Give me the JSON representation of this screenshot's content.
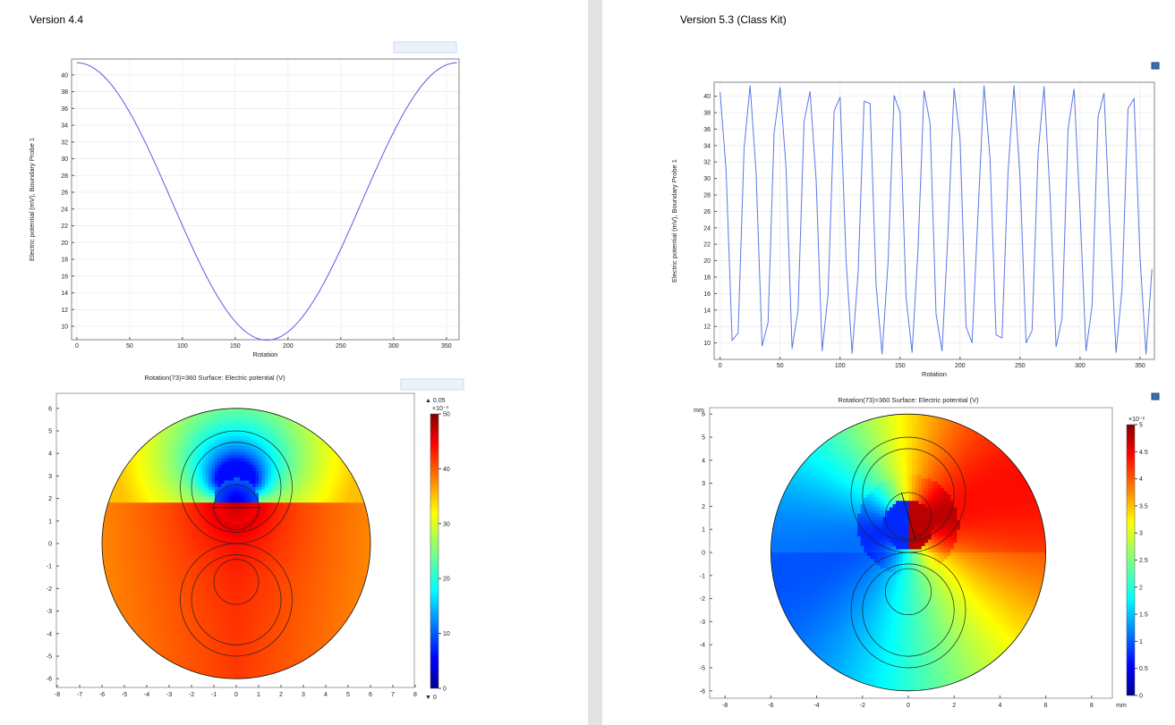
{
  "left": {
    "title": "Version 4.4",
    "line_plot": {
      "type": "line",
      "xlabel": "Rotation",
      "ylabel": "Electric potential (mV), Boundary Probe 1",
      "x_ticks": [
        "0",
        "50",
        "100",
        "150",
        "200",
        "250",
        "300",
        "350"
      ],
      "y_ticks": [
        "10",
        "12",
        "14",
        "16",
        "18",
        "20",
        "22",
        "24",
        "26",
        "28",
        "30",
        "32",
        "34",
        "36",
        "38",
        "40"
      ],
      "xlim": [
        -5,
        362
      ],
      "ylim": [
        8.4,
        41.9
      ],
      "line_color": "#5a5ae6",
      "model": {
        "mean": 24.9,
        "amplitude": 16.55,
        "period_deg": 360,
        "phase_deg": 0
      }
    },
    "surface_plot": {
      "title": "Rotation(73)=360   Surface: Electric potential (V)",
      "x_ticks": [
        "-8",
        "-7",
        "-6",
        "-5",
        "-4",
        "-3",
        "-2",
        "-1",
        "0",
        "1",
        "2",
        "3",
        "4",
        "5",
        "6",
        "7",
        "8"
      ],
      "y_ticks": [
        "6",
        "5",
        "4",
        "3",
        "2",
        "1",
        "0",
        "-1",
        "-2",
        "-3",
        "-4",
        "-5",
        "-6"
      ],
      "colorbar": {
        "max_label": "▲ 0.05",
        "min_label": "▼ 0",
        "exponent_label": "×10⁻³",
        "ticks": [
          "50",
          "40",
          "30",
          "20",
          "10",
          "0"
        ]
      }
    }
  },
  "right": {
    "title": "Version 5.3 (Class Kit)",
    "line_plot": {
      "type": "line",
      "xlabel": "Rotation",
      "ylabel": "Electric potential (mV), Boundary Probe 1",
      "x_ticks": [
        "0",
        "50",
        "100",
        "150",
        "200",
        "250",
        "300",
        "350"
      ],
      "y_ticks": [
        "10",
        "12",
        "14",
        "16",
        "18",
        "20",
        "22",
        "24",
        "26",
        "28",
        "30",
        "32",
        "34",
        "36",
        "38",
        "40"
      ],
      "xlim": [
        -5,
        362
      ],
      "ylim": [
        8.0,
        41.7
      ],
      "line_color": "#5a78e6",
      "x": [
        0,
        5,
        10,
        15,
        20,
        25,
        30,
        35,
        40,
        45,
        50,
        55,
        60,
        65,
        70,
        75,
        80,
        85,
        90,
        95,
        100,
        105,
        110,
        115,
        120,
        125,
        130,
        135,
        140,
        145,
        150,
        155,
        160,
        165,
        170,
        175,
        180,
        185,
        190,
        195,
        200,
        205,
        210,
        215,
        220,
        225,
        230,
        235,
        240,
        245,
        250,
        255,
        260,
        265,
        270,
        275,
        280,
        285,
        290,
        295,
        300,
        305,
        310,
        315,
        320,
        325,
        330,
        335,
        340,
        345,
        350,
        355,
        360
      ],
      "values": [
        40.5,
        30.9,
        10.3,
        11.2,
        33.7,
        41.3,
        30.7,
        9.6,
        12.5,
        35.5,
        41.1,
        31.3,
        9.3,
        14.0,
        36.9,
        40.6,
        29.8,
        9.0,
        16.0,
        38.2,
        39.9,
        20.0,
        8.7,
        18.5,
        39.4,
        39.1,
        17.0,
        8.6,
        19.9,
        40.1,
        38.0,
        15.5,
        8.8,
        21.5,
        40.7,
        36.7,
        13.5,
        9.0,
        23.5,
        41.0,
        34.8,
        12.0,
        10.0,
        25.7,
        41.3,
        32.5,
        11.0,
        10.6,
        30.7,
        41.3,
        30.0,
        10.0,
        11.5,
        33.0,
        41.2,
        28.0,
        9.5,
        13.0,
        36.0,
        40.9,
        26.0,
        9.0,
        14.5,
        37.5,
        40.4,
        24.0,
        8.8,
        16.5,
        38.5,
        39.7,
        20.5,
        8.6,
        19.0
      ]
    },
    "surface_plot": {
      "title": "Rotation(73)=360   Surface: Electric potential (V)",
      "unit_label": "mm",
      "x_ticks": [
        "-8",
        "-6",
        "-4",
        "-2",
        "0",
        "2",
        "4",
        "6",
        "8"
      ],
      "y_ticks": [
        "6",
        "5",
        "4",
        "3",
        "2",
        "1",
        "0",
        "-1",
        "-2",
        "-3",
        "-4",
        "-5",
        "-6"
      ],
      "colorbar": {
        "exponent_label": "×10⁻²",
        "ticks": [
          "5",
          "4.5",
          "4",
          "3.5",
          "3",
          "2.5",
          "2",
          "1.5",
          "1",
          "0.5",
          "0"
        ]
      }
    }
  }
}
